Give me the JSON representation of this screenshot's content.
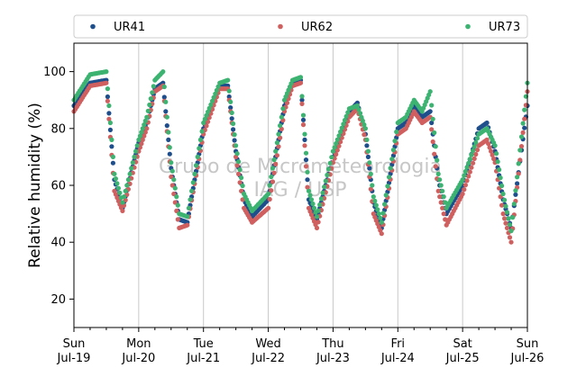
{
  "chart_data": {
    "type": "scatter",
    "ylabel": "Relative humidity (%)",
    "ylim": [
      10,
      110
    ],
    "yticks": [
      20,
      40,
      60,
      80,
      100
    ],
    "xlim": [
      "2020-07-19",
      "2020-07-26"
    ],
    "xticks": [
      {
        "day": "Sun",
        "date": "Jul-19"
      },
      {
        "day": "Mon",
        "date": "Jul-20"
      },
      {
        "day": "Tue",
        "date": "Jul-21"
      },
      {
        "day": "Wed",
        "date": "Jul-22"
      },
      {
        "day": "Thu",
        "date": "Jul-23"
      },
      {
        "day": "Fri",
        "date": "Jul-24"
      },
      {
        "day": "Sat",
        "date": "Jul-25"
      },
      {
        "day": "Sun",
        "date": "Jul-26"
      }
    ],
    "vertical_grid": true,
    "legend_position": "top",
    "watermark": [
      "Grupo de Micrometeorologia",
      "IAG / USP"
    ],
    "series": [
      {
        "name": "UR41",
        "color": "#1f4e8c",
        "x": [
          "2020-07-19 00:00",
          "2020-07-19 06:00",
          "2020-07-19 12:00",
          "2020-07-19 15:00",
          "2020-07-19 18:00",
          "2020-07-20 00:00",
          "2020-07-20 03:00",
          "2020-07-20 06:00",
          "2020-07-20 09:00",
          "2020-07-20 12:00",
          "2020-07-20 15:00",
          "2020-07-20 18:00",
          "2020-07-21 00:00",
          "2020-07-21 06:00",
          "2020-07-21 09:00",
          "2020-07-21 12:00",
          "2020-07-21 15:00",
          "2020-07-21 18:00",
          "2020-07-22 00:00",
          "2020-07-22 06:00",
          "2020-07-22 09:00",
          "2020-07-22 12:00",
          "2020-07-22 15:00",
          "2020-07-22 18:00",
          "2020-07-23 00:00",
          "2020-07-23 06:00",
          "2020-07-23 09:00",
          "2020-07-23 12:00",
          "2020-07-23 15:00",
          "2020-07-23 18:00",
          "2020-07-24 00:00",
          "2020-07-24 03:00",
          "2020-07-24 06:00",
          "2020-07-24 09:00",
          "2020-07-24 12:00",
          "2020-07-24 15:00",
          "2020-07-24 18:00",
          "2020-07-25 00:00",
          "2020-07-25 06:00",
          "2020-07-25 09:00",
          "2020-07-25 12:00",
          "2020-07-25 15:00",
          "2020-07-25 18:00",
          "2020-07-26 00:00"
        ],
        "y": [
          88,
          96,
          97,
          62,
          52,
          75,
          82,
          94,
          96,
          66,
          48,
          47,
          80,
          95,
          95,
          72,
          55,
          49,
          55,
          88,
          96,
          97,
          55,
          48,
          70,
          86,
          89,
          78,
          54,
          45,
          80,
          82,
          88,
          84,
          86,
          62,
          50,
          60,
          80,
          82,
          72,
          55,
          45,
          88
        ]
      },
      {
        "name": "UR62",
        "color": "#d05f5f",
        "x": [
          "2020-07-19 00:00",
          "2020-07-19 06:00",
          "2020-07-19 12:00",
          "2020-07-19 15:00",
          "2020-07-19 18:00",
          "2020-07-20 00:00",
          "2020-07-20 03:00",
          "2020-07-20 06:00",
          "2020-07-20 09:00",
          "2020-07-20 12:00",
          "2020-07-20 15:00",
          "2020-07-20 18:00",
          "2020-07-21 00:00",
          "2020-07-21 06:00",
          "2020-07-21 09:00",
          "2020-07-21 12:00",
          "2020-07-21 15:00",
          "2020-07-21 18:00",
          "2020-07-22 00:00",
          "2020-07-22 06:00",
          "2020-07-22 09:00",
          "2020-07-22 12:00",
          "2020-07-22 15:00",
          "2020-07-22 18:00",
          "2020-07-23 00:00",
          "2020-07-23 06:00",
          "2020-07-23 09:00",
          "2020-07-23 12:00",
          "2020-07-23 15:00",
          "2020-07-23 18:00",
          "2020-07-24 00:00",
          "2020-07-24 03:00",
          "2020-07-24 06:00",
          "2020-07-24 09:00",
          "2020-07-24 12:00",
          "2020-07-24 15:00",
          "2020-07-24 18:00",
          "2020-07-25 00:00",
          "2020-07-25 06:00",
          "2020-07-25 09:00",
          "2020-07-25 12:00",
          "2020-07-25 15:00",
          "2020-07-25 18:00",
          "2020-07-26 00:00"
        ],
        "y": [
          86,
          95,
          96,
          58,
          51,
          72,
          80,
          93,
          95,
          63,
          45,
          46,
          78,
          94,
          94,
          70,
          52,
          47,
          52,
          86,
          95,
          96,
          52,
          45,
          68,
          84,
          87,
          76,
          50,
          43,
          78,
          80,
          86,
          82,
          84,
          58,
          46,
          57,
          74,
          76,
          68,
          50,
          40,
          93
        ]
      },
      {
        "name": "UR73",
        "color": "#3cb371",
        "x": [
          "2020-07-19 00:00",
          "2020-07-19 06:00",
          "2020-07-19 12:00",
          "2020-07-19 15:00",
          "2020-07-19 18:00",
          "2020-07-20 00:00",
          "2020-07-20 03:00",
          "2020-07-20 06:00",
          "2020-07-20 09:00",
          "2020-07-20 12:00",
          "2020-07-20 15:00",
          "2020-07-20 18:00",
          "2020-07-21 00:00",
          "2020-07-21 06:00",
          "2020-07-21 09:00",
          "2020-07-21 12:00",
          "2020-07-21 15:00",
          "2020-07-21 18:00",
          "2020-07-22 00:00",
          "2020-07-22 06:00",
          "2020-07-22 09:00",
          "2020-07-22 12:00",
          "2020-07-22 15:00",
          "2020-07-22 18:00",
          "2020-07-23 00:00",
          "2020-07-23 06:00",
          "2020-07-23 09:00",
          "2020-07-23 12:00",
          "2020-07-23 15:00",
          "2020-07-23 18:00",
          "2020-07-24 00:00",
          "2020-07-24 03:00",
          "2020-07-24 06:00",
          "2020-07-24 09:00",
          "2020-07-24 12:00",
          "2020-07-24 15:00",
          "2020-07-24 18:00",
          "2020-07-25 00:00",
          "2020-07-25 06:00",
          "2020-07-25 09:00",
          "2020-07-25 12:00",
          "2020-07-25 15:00",
          "2020-07-25 18:00",
          "2020-07-26 00:00"
        ],
        "y": [
          90,
          99,
          100,
          64,
          54,
          76,
          84,
          97,
          100,
          68,
          50,
          49,
          82,
          96,
          97,
          74,
          57,
          51,
          57,
          90,
          97,
          98,
          58,
          49,
          72,
          87,
          88,
          80,
          56,
          47,
          82,
          84,
          90,
          86,
          93,
          64,
          52,
          62,
          78,
          80,
          74,
          57,
          44,
          96
        ]
      }
    ]
  }
}
